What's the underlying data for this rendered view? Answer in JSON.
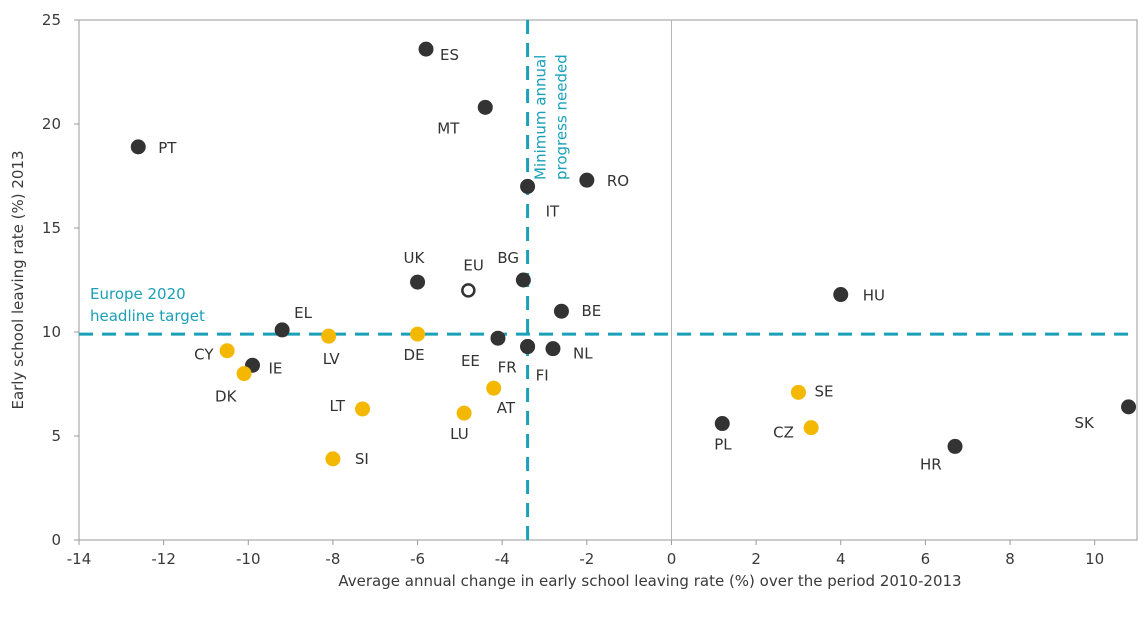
{
  "chart_data": {
    "type": "scatter",
    "xlabel": "Average annual change in early school leaving rate (%) over the period 2010-2013",
    "ylabel": "Early school leaving rate (%)  2013",
    "xlim": [
      -14,
      11
    ],
    "ylim": [
      0,
      25
    ],
    "xticks": [
      "-14",
      "-12",
      "-10",
      "-8",
      "-6",
      "-4",
      "-2",
      "0",
      "2",
      "4",
      "6",
      "8",
      "10"
    ],
    "yticks": [
      "0",
      "5",
      "10",
      "15",
      "20",
      "25"
    ],
    "grid": false,
    "reference_lines": {
      "vertical": {
        "x": -3.4,
        "label_lines": [
          "Minimum annual",
          "progress needed"
        ]
      },
      "horizontal": {
        "y": 9.9,
        "label_lines": [
          "Europe 2020",
          "headline target"
        ]
      },
      "zero_line_x": 0,
      "color": "#1aa0b8"
    },
    "colors": {
      "dark": "#333333",
      "yellow": "#f5b800",
      "eu": "#333333"
    },
    "series": [
      {
        "points": [
          {
            "label": "ES",
            "x": -5.8,
            "y": 23.6,
            "group": "dark"
          },
          {
            "label": "MT",
            "x": -4.4,
            "y": 20.8,
            "group": "dark"
          },
          {
            "label": "PT",
            "x": -12.6,
            "y": 18.9,
            "group": "dark"
          },
          {
            "label": "IT",
            "x": -3.4,
            "y": 17.0,
            "group": "dark"
          },
          {
            "label": "RO",
            "x": -2.0,
            "y": 17.3,
            "group": "dark"
          },
          {
            "label": "UK",
            "x": -6.0,
            "y": 12.4,
            "group": "dark"
          },
          {
            "label": "BG",
            "x": -3.5,
            "y": 12.5,
            "group": "dark"
          },
          {
            "label": "EU",
            "x": -4.8,
            "y": 12.0,
            "group": "eu"
          },
          {
            "label": "BE",
            "x": -2.6,
            "y": 11.0,
            "group": "dark"
          },
          {
            "label": "EL",
            "x": -9.2,
            "y": 10.1,
            "group": "dark"
          },
          {
            "label": "DE",
            "x": -6.0,
            "y": 9.9,
            "group": "yellow"
          },
          {
            "label": "LV",
            "x": -8.1,
            "y": 9.8,
            "group": "yellow"
          },
          {
            "label": "EE",
            "x": -4.1,
            "y": 9.7,
            "group": "dark"
          },
          {
            "label": "FR",
            "x": -3.4,
            "y": 9.3,
            "group": "dark"
          },
          {
            "label": "NL",
            "x": -2.8,
            "y": 9.2,
            "group": "dark"
          },
          {
            "label": "FI",
            "x": -3.4,
            "y": 9.3,
            "group": "dark"
          },
          {
            "label": "CY",
            "x": -10.5,
            "y": 9.1,
            "group": "yellow"
          },
          {
            "label": "IE",
            "x": -9.9,
            "y": 8.4,
            "group": "dark"
          },
          {
            "label": "DK",
            "x": -10.1,
            "y": 8.0,
            "group": "yellow"
          },
          {
            "label": "AT",
            "x": -4.2,
            "y": 7.3,
            "group": "yellow"
          },
          {
            "label": "LT",
            "x": -7.3,
            "y": 6.3,
            "group": "yellow"
          },
          {
            "label": "LU",
            "x": -4.9,
            "y": 6.1,
            "group": "yellow"
          },
          {
            "label": "SI",
            "x": -8.0,
            "y": 3.9,
            "group": "yellow"
          },
          {
            "label": "HU",
            "x": 4.0,
            "y": 11.8,
            "group": "dark"
          },
          {
            "label": "SE",
            "x": 3.0,
            "y": 7.1,
            "group": "yellow"
          },
          {
            "label": "CZ",
            "x": 3.3,
            "y": 5.4,
            "group": "yellow"
          },
          {
            "label": "PL",
            "x": 1.2,
            "y": 5.6,
            "group": "dark"
          },
          {
            "label": "HR",
            "x": 6.7,
            "y": 4.5,
            "group": "dark"
          },
          {
            "label": "SK",
            "x": 10.8,
            "y": 6.4,
            "group": "dark"
          }
        ]
      }
    ]
  }
}
